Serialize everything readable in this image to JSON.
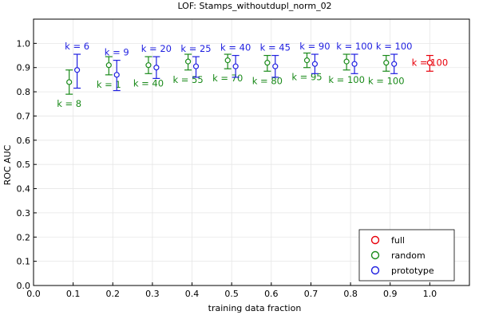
{
  "chart_data": {
    "type": "scatter",
    "title": "LOF: Stamps_withoutdupl_norm_02",
    "xlabel": "training data fraction",
    "ylabel": "ROC AUC",
    "xlim": [
      0.0,
      1.1
    ],
    "ylim": [
      0.0,
      1.1
    ],
    "xticks": [
      0.0,
      0.1,
      0.2,
      0.3,
      0.4,
      0.5,
      0.6,
      0.7,
      0.8,
      0.9,
      1.0
    ],
    "xtick_labels": [
      "0.0",
      "0.1",
      "0.2",
      "0.3",
      "0.4",
      "0.5",
      "0.6",
      "0.7",
      "0.8",
      "0.9",
      "1.0"
    ],
    "yticks": [
      0.0,
      0.1,
      0.2,
      0.3,
      0.4,
      0.5,
      0.6,
      0.7,
      0.8,
      0.9,
      1.0
    ],
    "ytick_labels": [
      "0.0",
      "0.1",
      "0.2",
      "0.3",
      "0.4",
      "0.5",
      "0.6",
      "0.7",
      "0.8",
      "0.9",
      "1.0"
    ],
    "grid": true,
    "legend_position": "bottom-right",
    "colors": {
      "full": "#e8000b",
      "random": "#1a8a1a",
      "prototype": "#1f1fe0"
    },
    "series": [
      {
        "name": "full",
        "points": [
          {
            "x": 1.0,
            "y": 0.92,
            "ylo": 0.885,
            "yhi": 0.95,
            "label": "k = 100",
            "label_pos": "center"
          }
        ]
      },
      {
        "name": "random",
        "points": [
          {
            "x": 0.09,
            "y": 0.84,
            "ylo": 0.79,
            "yhi": 0.89,
            "label": "k = 8",
            "label_pos": "below"
          },
          {
            "x": 0.19,
            "y": 0.91,
            "ylo": 0.87,
            "yhi": 0.945,
            "label": "k = 1",
            "label_pos": "below"
          },
          {
            "x": 0.29,
            "y": 0.91,
            "ylo": 0.875,
            "yhi": 0.945,
            "label": "k = 40",
            "label_pos": "below"
          },
          {
            "x": 0.39,
            "y": 0.925,
            "ylo": 0.89,
            "yhi": 0.955,
            "label": "k = 55",
            "label_pos": "below"
          },
          {
            "x": 0.49,
            "y": 0.93,
            "ylo": 0.895,
            "yhi": 0.955,
            "label": "k = 70",
            "label_pos": "below"
          },
          {
            "x": 0.59,
            "y": 0.92,
            "ylo": 0.885,
            "yhi": 0.95,
            "label": "k = 80",
            "label_pos": "below"
          },
          {
            "x": 0.69,
            "y": 0.93,
            "ylo": 0.9,
            "yhi": 0.96,
            "label": "k = 95",
            "label_pos": "below"
          },
          {
            "x": 0.79,
            "y": 0.925,
            "ylo": 0.89,
            "yhi": 0.955,
            "label": "k = 100",
            "label_pos": "below"
          },
          {
            "x": 0.89,
            "y": 0.92,
            "ylo": 0.885,
            "yhi": 0.95,
            "label": "k = 100",
            "label_pos": "below"
          }
        ]
      },
      {
        "name": "prototype",
        "points": [
          {
            "x": 0.11,
            "y": 0.89,
            "ylo": 0.815,
            "yhi": 0.955,
            "label": "k = 6",
            "label_pos": "above"
          },
          {
            "x": 0.21,
            "y": 0.87,
            "ylo": 0.805,
            "yhi": 0.93,
            "label": "k = 9",
            "label_pos": "above"
          },
          {
            "x": 0.31,
            "y": 0.9,
            "ylo": 0.855,
            "yhi": 0.945,
            "label": "k = 20",
            "label_pos": "above"
          },
          {
            "x": 0.41,
            "y": 0.905,
            "ylo": 0.86,
            "yhi": 0.945,
            "label": "k = 25",
            "label_pos": "above"
          },
          {
            "x": 0.51,
            "y": 0.905,
            "ylo": 0.86,
            "yhi": 0.95,
            "label": "k = 40",
            "label_pos": "above"
          },
          {
            "x": 0.61,
            "y": 0.905,
            "ylo": 0.86,
            "yhi": 0.95,
            "label": "k = 45",
            "label_pos": "above"
          },
          {
            "x": 0.71,
            "y": 0.915,
            "ylo": 0.875,
            "yhi": 0.955,
            "label": "k = 90",
            "label_pos": "above"
          },
          {
            "x": 0.81,
            "y": 0.915,
            "ylo": 0.875,
            "yhi": 0.955,
            "label": "k = 100",
            "label_pos": "above"
          },
          {
            "x": 0.91,
            "y": 0.915,
            "ylo": 0.875,
            "yhi": 0.955,
            "label": "k = 100",
            "label_pos": "above"
          }
        ]
      }
    ]
  }
}
